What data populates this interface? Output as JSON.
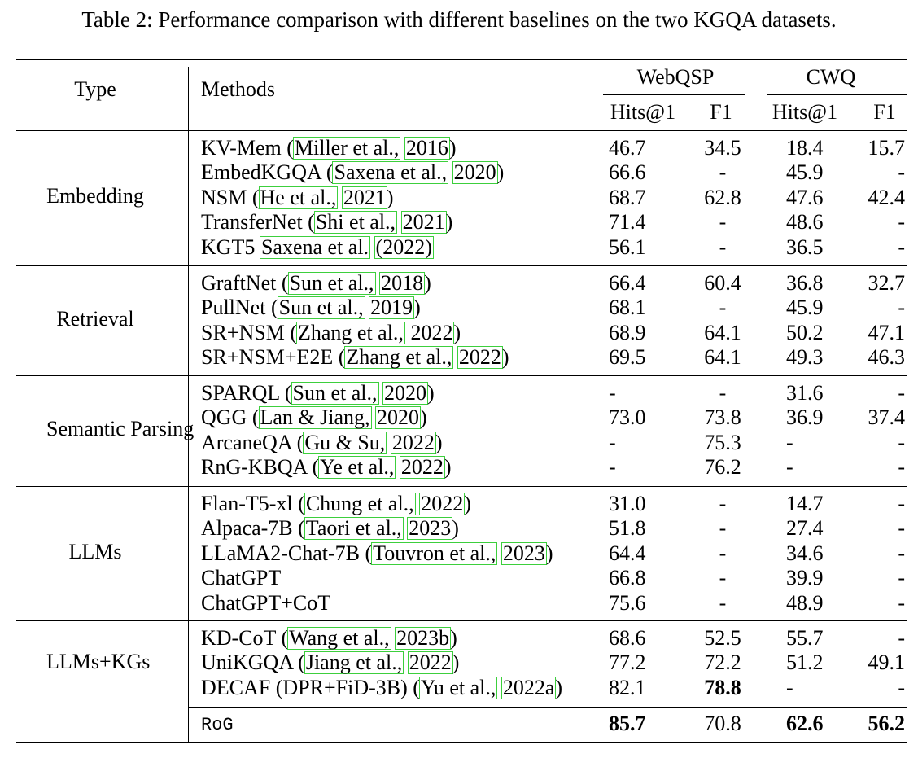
{
  "caption": "Table 2: Performance comparison with different baselines on the two KGQA datasets.",
  "header": {
    "type": "Type",
    "methods": "Methods",
    "webqsp": "WebQSP",
    "cwq": "CWQ",
    "hits1": "Hits@1",
    "f1": "F1"
  },
  "groups": [
    {
      "type": "Embedding",
      "rows": [
        {
          "name": "KV-Mem (",
          "cite": [
            "Miller et al.,",
            "2016"
          ],
          "post": ")",
          "w_hits": "46.7",
          "w_f1": "34.5",
          "c_hits": "18.4",
          "c_f1": "15.7"
        },
        {
          "name": "EmbedKGQA (",
          "cite": [
            "Saxena et al.,",
            "2020"
          ],
          "post": ")",
          "w_hits": "66.6",
          "w_f1": "-",
          "c_hits": "45.9",
          "c_f1": "-"
        },
        {
          "name": "NSM (",
          "cite": [
            "He et al.,",
            "2021"
          ],
          "post": ")",
          "w_hits": "68.7",
          "w_f1": "62.8",
          "c_hits": "47.6",
          "c_f1": "42.4"
        },
        {
          "name": "TransferNet (",
          "cite": [
            "Shi et al.,",
            "2021"
          ],
          "post": ")",
          "w_hits": "71.4",
          "w_f1": "-",
          "c_hits": "48.6",
          "c_f1": "-"
        },
        {
          "name": "KGT5 ",
          "cite": [
            "Saxena et al.",
            "(2022)"
          ],
          "post": "",
          "w_hits": "56.1",
          "w_f1": "-",
          "c_hits": "36.5",
          "c_f1": "-"
        }
      ]
    },
    {
      "type": "Retrieval",
      "rows": [
        {
          "name": "GraftNet (",
          "cite": [
            "Sun et al.,",
            "2018"
          ],
          "post": ")",
          "w_hits": "66.4",
          "w_f1": "60.4",
          "c_hits": "36.8",
          "c_f1": "32.7"
        },
        {
          "name": "PullNet (",
          "cite": [
            "Sun et al.,",
            "2019"
          ],
          "post": ")",
          "w_hits": "68.1",
          "w_f1": "-",
          "c_hits": "45.9",
          "c_f1": "-"
        },
        {
          "name": "SR+NSM (",
          "cite": [
            "Zhang et al.,",
            "2022"
          ],
          "post": ")",
          "w_hits": "68.9",
          "w_f1": "64.1",
          "c_hits": "50.2",
          "c_f1": "47.1"
        },
        {
          "name": "SR+NSM+E2E (",
          "cite": [
            "Zhang et al.,",
            "2022"
          ],
          "post": ")",
          "w_hits": "69.5",
          "w_f1": "64.1",
          "c_hits": "49.3",
          "c_f1": "46.3"
        }
      ]
    },
    {
      "type": "Semantic Parsing",
      "rows": [
        {
          "name": "SPARQL (",
          "cite": [
            "Sun et al.,",
            "2020"
          ],
          "post": ")",
          "w_hits": "-",
          "w_f1": "-",
          "c_hits": "31.6",
          "c_f1": "-"
        },
        {
          "name": "QGG (",
          "cite": [
            "Lan & Jiang,",
            "2020"
          ],
          "post": ")",
          "w_hits": "73.0",
          "w_f1": "73.8",
          "c_hits": "36.9",
          "c_f1": "37.4"
        },
        {
          "name": "ArcaneQA (",
          "cite": [
            "Gu & Su,",
            "2022"
          ],
          "post": ")",
          "w_hits": "-",
          "w_f1": "75.3",
          "c_hits": "-",
          "c_f1": "-"
        },
        {
          "name": "RnG-KBQA (",
          "cite": [
            "Ye et al.,",
            "2022"
          ],
          "post": ")",
          "w_hits": "-",
          "w_f1": "76.2",
          "c_hits": "-",
          "c_f1": "-"
        }
      ]
    },
    {
      "type": "LLMs",
      "rows": [
        {
          "name": "Flan-T5-xl (",
          "cite": [
            "Chung et al.,",
            "2022"
          ],
          "post": ")",
          "w_hits": "31.0",
          "w_f1": "-",
          "c_hits": "14.7",
          "c_f1": "-"
        },
        {
          "name": "Alpaca-7B (",
          "cite": [
            "Taori et al.,",
            "2023"
          ],
          "post": ")",
          "w_hits": "51.8",
          "w_f1": "-",
          "c_hits": "27.4",
          "c_f1": "-"
        },
        {
          "name": "LLaMA2-Chat-7B (",
          "cite": [
            "Touvron et al.,",
            "2023"
          ],
          "post": ")",
          "w_hits": "64.4",
          "w_f1": "-",
          "c_hits": "34.6",
          "c_f1": "-"
        },
        {
          "name": "ChatGPT",
          "cite": [],
          "post": "",
          "w_hits": "66.8",
          "w_f1": "-",
          "c_hits": "39.9",
          "c_f1": "-"
        },
        {
          "name": "ChatGPT+CoT",
          "cite": [],
          "post": "",
          "w_hits": "75.6",
          "w_f1": "-",
          "c_hits": "48.9",
          "c_f1": "-"
        }
      ]
    },
    {
      "type": "LLMs+KGs",
      "rows": [
        {
          "name": "KD-CoT (",
          "cite": [
            "Wang et al.,",
            "2023b"
          ],
          "post": ")",
          "w_hits": "68.6",
          "w_f1": "52.5",
          "c_hits": "55.7",
          "c_f1": "-"
        },
        {
          "name": "UniKGQA (",
          "cite": [
            "Jiang et al.,",
            "2022"
          ],
          "post": ")",
          "w_hits": "77.2",
          "w_f1": "72.2",
          "c_hits": "51.2",
          "c_f1": "49.1"
        },
        {
          "name": "DECAF (DPR+FiD-3B) (",
          "cite": [
            "Yu et al.,",
            "2022a"
          ],
          "post": ")",
          "w_hits": "82.1",
          "w_f1": "78.8",
          "c_hits": "-",
          "c_f1": "-",
          "bold": [
            "w_f1"
          ]
        }
      ]
    }
  ],
  "rog": {
    "name": "RoG",
    "w_hits": "85.7",
    "w_f1": "70.8",
    "c_hits": "62.6",
    "c_f1": "56.2",
    "bold": [
      "w_hits",
      "c_hits",
      "c_f1"
    ]
  }
}
